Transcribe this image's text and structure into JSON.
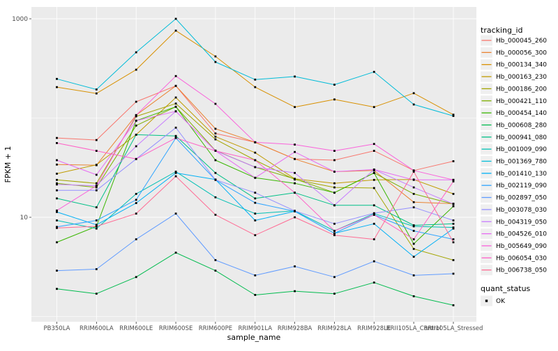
{
  "chart_data": {
    "type": "line",
    "xlabel": "sample_name",
    "ylabel": "FPKM + 1",
    "y_scale": "log10",
    "y_tick_labels": [
      "1000",
      "10"
    ],
    "y_ticks": [
      1000,
      10
    ],
    "y_minor_gridlines": [
      100,
      1
    ],
    "ylim": [
      0.9,
      1300
    ],
    "grid": true,
    "legend_position": "right",
    "categories": [
      "PB350LA",
      "RRIM600LA",
      "RRIM600LE",
      "RRIM600SE",
      "RRIM600PE",
      "RRIM901LA",
      "RRIM928BA",
      "RRIM928LA",
      "RRIM928LE",
      "RRII105LA_Control",
      "RRII105LA_Stressed"
    ],
    "series": [
      {
        "name": "Hb_000045_260",
        "color": "#F8766D",
        "values": [
          63,
          60,
          146,
          211,
          70,
          57,
          38.7,
          37.6,
          46.7,
          29.6,
          36.7
        ]
      },
      {
        "name": "Hb_000056_300",
        "color": "#EA8331",
        "values": [
          34,
          33.5,
          107,
          211,
          78,
          57,
          38.7,
          28.8,
          29.6,
          14.2,
          13.7
        ]
      },
      {
        "name": "Hb_000134_340",
        "color": "#D89000",
        "values": [
          205,
          177,
          307,
          760,
          418,
          205,
          129,
          154,
          129,
          178,
          108
        ]
      },
      {
        "name": "Hb_000163_230",
        "color": "#C09B00",
        "values": [
          27.5,
          33.8,
          68,
          161,
          65,
          44.8,
          24.4,
          22,
          23.8,
          24,
          17.2
        ]
      },
      {
        "name": "Hb_000186_200",
        "color": "#A3A500",
        "values": [
          23.8,
          22,
          104,
          140,
          61,
          37.6,
          24,
          20,
          19.7,
          4.8,
          3.7
        ]
      },
      {
        "name": "Hb_000421_110",
        "color": "#7CAE00",
        "values": [
          22,
          20,
          84,
          130,
          47,
          32,
          24.4,
          17.7,
          28,
          17.2,
          13.6
        ]
      },
      {
        "name": "Hb_000454_140",
        "color": "#39B600",
        "values": [
          5.6,
          8.1,
          94,
          130,
          37.6,
          25,
          22,
          17.7,
          28,
          5.4,
          12.9
        ]
      },
      {
        "name": "Hb_000608_280",
        "color": "#00BB4E",
        "values": [
          1.9,
          1.7,
          2.5,
          4.4,
          2.9,
          1.65,
          1.8,
          1.7,
          2.2,
          1.6,
          1.3
        ]
      },
      {
        "name": "Hb_000941_080",
        "color": "#00C087",
        "values": [
          15.5,
          12.6,
          68,
          66,
          28,
          15.5,
          17.7,
          13.2,
          13.2,
          8.3,
          8.6
        ]
      },
      {
        "name": "Hb_001009_090",
        "color": "#00C0B4",
        "values": [
          9.3,
          7.7,
          17.2,
          28.8,
          15.9,
          10.9,
          11.6,
          7.3,
          10.9,
          8.1,
          7.9
        ]
      },
      {
        "name": "Hb_001369_780",
        "color": "#00BCD8",
        "values": [
          248,
          194,
          460,
          1000,
          367,
          244,
          262,
          217,
          292,
          137,
          105
        ]
      },
      {
        "name": "Hb_001410_130",
        "color": "#00B0F6",
        "values": [
          11.3,
          8.4,
          13.9,
          28,
          24,
          9.3,
          11.5,
          6.9,
          8.6,
          4.0,
          7.7
        ]
      },
      {
        "name": "Hb_002119_090",
        "color": "#2FA4FF",
        "values": [
          8.0,
          9.3,
          15,
          63,
          23.8,
          14,
          11.5,
          6.9,
          10.6,
          7.3,
          6.0
        ]
      },
      {
        "name": "Hb_002897_050",
        "color": "#619CFF",
        "values": [
          2.9,
          3.0,
          6.0,
          10.9,
          3.7,
          2.6,
          3.2,
          2.5,
          3.6,
          2.6,
          2.7
        ]
      },
      {
        "name": "Hb_003078_030",
        "color": "#9590FF",
        "values": [
          18.7,
          18.7,
          38.7,
          80,
          23.8,
          17.7,
          11.6,
          8.6,
          11,
          12.6,
          9.3
        ]
      },
      {
        "name": "Hb_004319_050",
        "color": "#C77CFF",
        "values": [
          21.4,
          20.8,
          52,
          117,
          46.7,
          32,
          28,
          13.2,
          30.3,
          20,
          13.6
        ]
      },
      {
        "name": "Hb_004526_010",
        "color": "#E76BF3",
        "values": [
          37.6,
          26.8,
          94,
          117,
          46.7,
          25,
          45.5,
          28.8,
          30.3,
          23.8,
          23.8
        ]
      },
      {
        "name": "Hb_005649_090",
        "color": "#FA62DB",
        "values": [
          11.7,
          20.8,
          107,
          265,
          139,
          57,
          54,
          46.7,
          54.8,
          29.6,
          23.8
        ]
      },
      {
        "name": "Hb_006054_030",
        "color": "#FF61C7",
        "values": [
          56,
          46.7,
          38.7,
          63,
          46.7,
          37.6,
          17.7,
          7.3,
          10.6,
          6.0,
          23
        ]
      },
      {
        "name": "Hb_006738_050",
        "color": "#FF6B94",
        "values": [
          7.8,
          8.1,
          10.9,
          25.9,
          10.6,
          6.6,
          10,
          6.6,
          6.0,
          28.8,
          5.6
        ]
      }
    ],
    "point_shape": "square",
    "point_color": "#000000"
  },
  "legend": {
    "tracking_title": "tracking_id",
    "quant_title": "quant_status",
    "quant_items": [
      {
        "label": "OK",
        "shape": "square",
        "color": "#000000"
      }
    ]
  },
  "style": {
    "panel_bg": "#EBEBEB",
    "grid_color": "#FFFFFF",
    "key_bg": "#EFEFEF",
    "tick_label_color": "#4D4D4D",
    "title_color": "#000000"
  }
}
